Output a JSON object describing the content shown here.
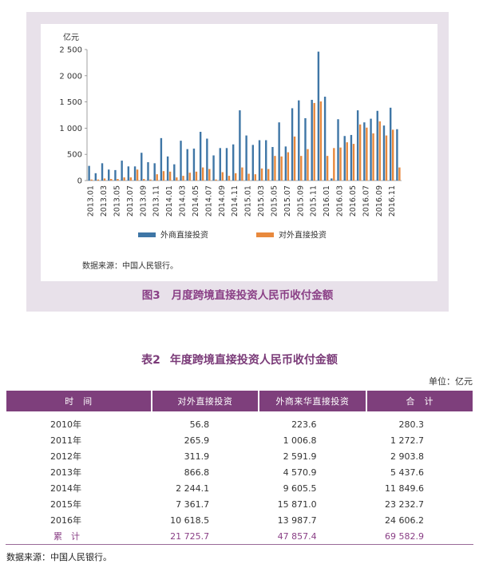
{
  "figure": {
    "number": "图3",
    "title": "月度跨境直接投资人民币收付金额",
    "source": "数据来源：中国人民银行。"
  },
  "chart_data": {
    "type": "bar",
    "ylabel": "亿元",
    "ylim": [
      0,
      2500
    ],
    "yticks": [
      "0",
      "500",
      "1 000",
      "1 500",
      "2 000",
      "2 500"
    ],
    "legend_position": "bottom",
    "x_tick_labels": [
      "2013.01",
      "2013.03",
      "2013.05",
      "2013.07",
      "2013.09",
      "2013.11",
      "2014.01",
      "2014.03",
      "2014.05",
      "2014.07",
      "2014.09",
      "2014.11",
      "2015.01",
      "2015.03",
      "2015.05",
      "2015.07",
      "2015.09",
      "2015.11",
      "2016.01",
      "2016.03",
      "2016.05",
      "2016.07",
      "2016.09",
      "2016.11"
    ],
    "categories": [
      "2013.01",
      "2013.02",
      "2013.03",
      "2013.04",
      "2013.05",
      "2013.06",
      "2013.07",
      "2013.08",
      "2013.09",
      "2013.10",
      "2013.11",
      "2013.12",
      "2014.01",
      "2014.02",
      "2014.03",
      "2014.04",
      "2014.05",
      "2014.06",
      "2014.07",
      "2014.08",
      "2014.09",
      "2014.10",
      "2014.11",
      "2014.12",
      "2015.01",
      "2015.02",
      "2015.03",
      "2015.04",
      "2015.05",
      "2015.06",
      "2015.07",
      "2015.08",
      "2015.09",
      "2015.10",
      "2015.11",
      "2015.12",
      "2016.01",
      "2016.02",
      "2016.03",
      "2016.04",
      "2016.05",
      "2016.06",
      "2016.07",
      "2016.08",
      "2016.09",
      "2016.10",
      "2016.11",
      "2016.12"
    ],
    "series": [
      {
        "name": "外商直接投资",
        "color": "#3f76a6",
        "values": [
          280,
          140,
          330,
          210,
          200,
          380,
          270,
          270,
          530,
          350,
          330,
          810,
          460,
          310,
          760,
          600,
          610,
          930,
          800,
          480,
          620,
          620,
          690,
          1340,
          860,
          680,
          770,
          770,
          640,
          1110,
          650,
          1380,
          1530,
          1190,
          1540,
          2460,
          1600,
          40,
          1170,
          850,
          870,
          1340,
          1110,
          1180,
          1330,
          1050,
          1390,
          980
        ]
      },
      {
        "name": "对外直接投资",
        "color": "#e8893d",
        "values": [
          20,
          20,
          40,
          30,
          30,
          60,
          60,
          210,
          30,
          20,
          120,
          180,
          170,
          60,
          90,
          150,
          170,
          250,
          220,
          20,
          160,
          90,
          140,
          250,
          130,
          120,
          230,
          220,
          470,
          460,
          540,
          840,
          470,
          600,
          1480,
          1510,
          470,
          620,
          630,
          730,
          700,
          1070,
          1010,
          900,
          1130,
          860,
          970,
          250
        ]
      }
    ]
  },
  "table": {
    "number": "表2",
    "title": "年度跨境直接投资人民币收付金额",
    "unit": "单位：亿元",
    "headers": [
      "时　间",
      "对外直接投资",
      "外商来华直接投资",
      "合　计"
    ],
    "rows": [
      [
        "2010年",
        "56.8",
        "223.6",
        "280.3"
      ],
      [
        "2011年",
        "265.9",
        "1 006.8",
        "1 272.7"
      ],
      [
        "2012年",
        "311.9",
        "2 591.9",
        "2 903.8"
      ],
      [
        "2013年",
        "866.8",
        "4 570.9",
        "5 437.6"
      ],
      [
        "2014年",
        "2 244.1",
        "9 605.5",
        "11 849.6"
      ],
      [
        "2015年",
        "7 361.7",
        "15 871.0",
        "23 232.7"
      ],
      [
        "2016年",
        "10 618.5",
        "13 987.7",
        "24 606.2"
      ]
    ],
    "total": [
      "累　计",
      "21 725.7",
      "47 857.4",
      "69 582.9"
    ],
    "source": "数据来源：中国人民银行。"
  }
}
